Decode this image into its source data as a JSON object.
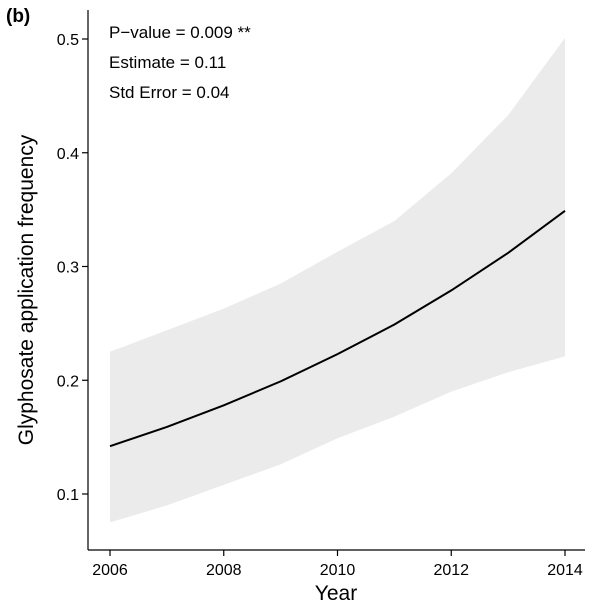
{
  "panel_label": "(b)",
  "annotations": [
    "P−value = 0.009 **",
    "Estimate = 0.11",
    "Std Error = 0.04"
  ],
  "chart_data": {
    "type": "line",
    "xlabel": "Year",
    "ylabel": "Glyphosate application frequency",
    "xlim": [
      2006,
      2014
    ],
    "ylim": [
      0.05,
      0.52
    ],
    "x_ticks": [
      2006,
      2008,
      2010,
      2012,
      2014
    ],
    "y_ticks": [
      0.1,
      0.2,
      0.3,
      0.4,
      0.5
    ],
    "grid": false,
    "series": [
      {
        "x": [
          2006,
          2007,
          2008,
          2009,
          2010,
          2011,
          2012,
          2013,
          2014
        ],
        "y": [
          0.142,
          0.159,
          0.178,
          0.199,
          0.223,
          0.249,
          0.279,
          0.312,
          0.349
        ],
        "lower": [
          0.075,
          0.09,
          0.108,
          0.126,
          0.149,
          0.168,
          0.19,
          0.207,
          0.221
        ],
        "upper": [
          0.225,
          0.244,
          0.263,
          0.285,
          0.313,
          0.34,
          0.382,
          0.433,
          0.501
        ]
      }
    ],
    "colors": {
      "line": "#000000",
      "band": "#ebebeb",
      "axis": "#000000"
    }
  }
}
